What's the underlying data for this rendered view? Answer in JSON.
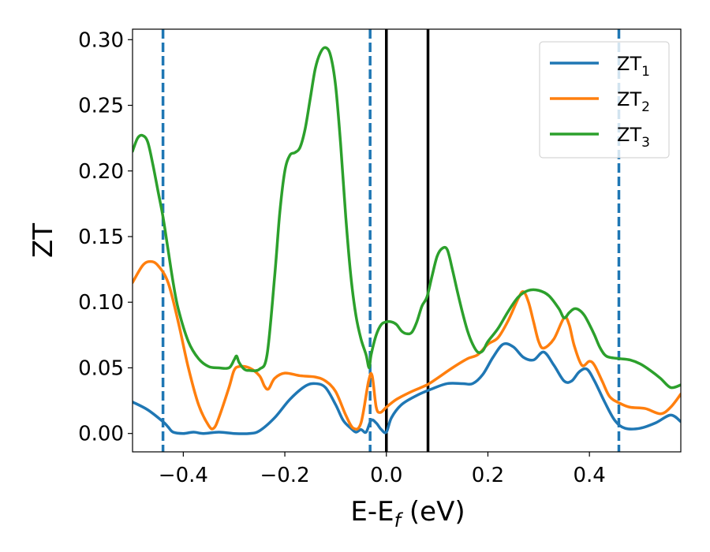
{
  "chart_data": {
    "type": "line",
    "xlabel": "E-E",
    "xlabel_sub": "f",
    "xlabel_unit": " (eV)",
    "ylabel": "ZT",
    "xlim": [
      -0.5,
      0.58
    ],
    "ylim": [
      -0.014,
      0.308
    ],
    "xticks": [
      {
        "value": -0.4,
        "label": "−0.4"
      },
      {
        "value": -0.2,
        "label": "−0.2"
      },
      {
        "value": 0.0,
        "label": "0.0"
      },
      {
        "value": 0.2,
        "label": "0.2"
      },
      {
        "value": 0.4,
        "label": "0.4"
      }
    ],
    "yticks": [
      {
        "value": 0.0,
        "label": "0.00"
      },
      {
        "value": 0.05,
        "label": "0.05"
      },
      {
        "value": 0.1,
        "label": "0.10"
      },
      {
        "value": 0.15,
        "label": "0.15"
      },
      {
        "value": 0.2,
        "label": "0.20"
      },
      {
        "value": 0.25,
        "label": "0.25"
      },
      {
        "value": 0.3,
        "label": "0.30"
      }
    ],
    "grid": false,
    "legend_position": "top-right",
    "vlines": [
      {
        "x": -0.44,
        "style": "dashed",
        "color": "#1f77b4"
      },
      {
        "x": -0.032,
        "style": "dashed",
        "color": "#1f77b4"
      },
      {
        "x": 0.458,
        "style": "dashed",
        "color": "#1f77b4"
      },
      {
        "x": 0.0,
        "style": "solid",
        "color": "#000000"
      },
      {
        "x": 0.082,
        "style": "solid",
        "color": "#000000"
      }
    ],
    "series": [
      {
        "name": "ZT",
        "name_sub": "1",
        "color": "#1f77b4",
        "points": [
          [
            -0.5,
            0.024
          ],
          [
            -0.47,
            0.018
          ],
          [
            -0.44,
            0.009
          ],
          [
            -0.43,
            0.005
          ],
          [
            -0.42,
            0.001
          ],
          [
            -0.4,
            0.0
          ],
          [
            -0.38,
            0.001
          ],
          [
            -0.36,
            0.0
          ],
          [
            -0.33,
            0.001
          ],
          [
            -0.3,
            0.0
          ],
          [
            -0.27,
            0.0
          ],
          [
            -0.25,
            0.002
          ],
          [
            -0.22,
            0.012
          ],
          [
            -0.19,
            0.026
          ],
          [
            -0.16,
            0.036
          ],
          [
            -0.14,
            0.038
          ],
          [
            -0.12,
            0.035
          ],
          [
            -0.1,
            0.022
          ],
          [
            -0.085,
            0.01
          ],
          [
            -0.07,
            0.004
          ],
          [
            -0.06,
            0.001
          ],
          [
            -0.05,
            0.003
          ],
          [
            -0.04,
            0.001
          ],
          [
            -0.03,
            0.01
          ],
          [
            -0.02,
            0.008
          ],
          [
            -0.01,
            0.003
          ],
          [
            0.0,
            0.001
          ],
          [
            0.01,
            0.012
          ],
          [
            0.03,
            0.022
          ],
          [
            0.06,
            0.029
          ],
          [
            0.09,
            0.034
          ],
          [
            0.12,
            0.038
          ],
          [
            0.15,
            0.038
          ],
          [
            0.17,
            0.038
          ],
          [
            0.19,
            0.045
          ],
          [
            0.21,
            0.058
          ],
          [
            0.23,
            0.068
          ],
          [
            0.25,
            0.066
          ],
          [
            0.27,
            0.058
          ],
          [
            0.29,
            0.056
          ],
          [
            0.31,
            0.062
          ],
          [
            0.33,
            0.052
          ],
          [
            0.35,
            0.04
          ],
          [
            0.365,
            0.04
          ],
          [
            0.38,
            0.047
          ],
          [
            0.395,
            0.049
          ],
          [
            0.41,
            0.04
          ],
          [
            0.43,
            0.024
          ],
          [
            0.45,
            0.01
          ],
          [
            0.47,
            0.004
          ],
          [
            0.5,
            0.004
          ],
          [
            0.53,
            0.008
          ],
          [
            0.56,
            0.014
          ],
          [
            0.58,
            0.009
          ]
        ]
      },
      {
        "name": "ZT",
        "name_sub": "2",
        "color": "#ff7f0e",
        "points": [
          [
            -0.5,
            0.115
          ],
          [
            -0.48,
            0.128
          ],
          [
            -0.465,
            0.131
          ],
          [
            -0.45,
            0.128
          ],
          [
            -0.43,
            0.115
          ],
          [
            -0.41,
            0.085
          ],
          [
            -0.39,
            0.05
          ],
          [
            -0.37,
            0.022
          ],
          [
            -0.35,
            0.006
          ],
          [
            -0.34,
            0.004
          ],
          [
            -0.33,
            0.012
          ],
          [
            -0.31,
            0.035
          ],
          [
            -0.3,
            0.048
          ],
          [
            -0.29,
            0.051
          ],
          [
            -0.27,
            0.05
          ],
          [
            -0.25,
            0.044
          ],
          [
            -0.24,
            0.036
          ],
          [
            -0.232,
            0.034
          ],
          [
            -0.22,
            0.042
          ],
          [
            -0.2,
            0.046
          ],
          [
            -0.17,
            0.044
          ],
          [
            -0.14,
            0.043
          ],
          [
            -0.12,
            0.04
          ],
          [
            -0.1,
            0.032
          ],
          [
            -0.08,
            0.014
          ],
          [
            -0.065,
            0.004
          ],
          [
            -0.05,
            0.008
          ],
          [
            -0.035,
            0.04
          ],
          [
            -0.028,
            0.044
          ],
          [
            -0.02,
            0.02
          ],
          [
            -0.012,
            0.016
          ],
          [
            0.0,
            0.02
          ],
          [
            0.02,
            0.026
          ],
          [
            0.05,
            0.032
          ],
          [
            0.08,
            0.037
          ],
          [
            0.1,
            0.042
          ],
          [
            0.13,
            0.05
          ],
          [
            0.16,
            0.057
          ],
          [
            0.18,
            0.06
          ],
          [
            0.2,
            0.068
          ],
          [
            0.22,
            0.073
          ],
          [
            0.24,
            0.086
          ],
          [
            0.26,
            0.103
          ],
          [
            0.27,
            0.108
          ],
          [
            0.28,
            0.1
          ],
          [
            0.29,
            0.085
          ],
          [
            0.3,
            0.07
          ],
          [
            0.31,
            0.065
          ],
          [
            0.33,
            0.072
          ],
          [
            0.35,
            0.088
          ],
          [
            0.36,
            0.083
          ],
          [
            0.37,
            0.067
          ],
          [
            0.385,
            0.052
          ],
          [
            0.4,
            0.055
          ],
          [
            0.41,
            0.052
          ],
          [
            0.425,
            0.04
          ],
          [
            0.44,
            0.028
          ],
          [
            0.46,
            0.023
          ],
          [
            0.48,
            0.02
          ],
          [
            0.51,
            0.019
          ],
          [
            0.54,
            0.015
          ],
          [
            0.56,
            0.02
          ],
          [
            0.58,
            0.03
          ]
        ]
      },
      {
        "name": "ZT",
        "name_sub": "3",
        "color": "#2ca02c",
        "points": [
          [
            -0.5,
            0.215
          ],
          [
            -0.49,
            0.225
          ],
          [
            -0.48,
            0.227
          ],
          [
            -0.47,
            0.222
          ],
          [
            -0.46,
            0.205
          ],
          [
            -0.45,
            0.185
          ],
          [
            -0.44,
            0.165
          ],
          [
            -0.43,
            0.14
          ],
          [
            -0.42,
            0.115
          ],
          [
            -0.41,
            0.095
          ],
          [
            -0.39,
            0.07
          ],
          [
            -0.37,
            0.057
          ],
          [
            -0.35,
            0.051
          ],
          [
            -0.33,
            0.05
          ],
          [
            -0.31,
            0.05
          ],
          [
            -0.3,
            0.056
          ],
          [
            -0.295,
            0.059
          ],
          [
            -0.29,
            0.054
          ],
          [
            -0.28,
            0.049
          ],
          [
            -0.27,
            0.048
          ],
          [
            -0.25,
            0.049
          ],
          [
            -0.235,
            0.06
          ],
          [
            -0.22,
            0.12
          ],
          [
            -0.21,
            0.168
          ],
          [
            -0.2,
            0.2
          ],
          [
            -0.19,
            0.212
          ],
          [
            -0.18,
            0.214
          ],
          [
            -0.17,
            0.218
          ],
          [
            -0.16,
            0.232
          ],
          [
            -0.15,
            0.255
          ],
          [
            -0.14,
            0.278
          ],
          [
            -0.13,
            0.29
          ],
          [
            -0.12,
            0.294
          ],
          [
            -0.11,
            0.288
          ],
          [
            -0.1,
            0.265
          ],
          [
            -0.09,
            0.22
          ],
          [
            -0.08,
            0.165
          ],
          [
            -0.07,
            0.12
          ],
          [
            -0.06,
            0.09
          ],
          [
            -0.05,
            0.072
          ],
          [
            -0.04,
            0.06
          ],
          [
            -0.034,
            0.05
          ],
          [
            -0.03,
            0.06
          ],
          [
            -0.02,
            0.075
          ],
          [
            -0.01,
            0.083
          ],
          [
            0.0,
            0.085
          ],
          [
            0.01,
            0.085
          ],
          [
            0.02,
            0.083
          ],
          [
            0.03,
            0.078
          ],
          [
            0.04,
            0.076
          ],
          [
            0.05,
            0.077
          ],
          [
            0.06,
            0.085
          ],
          [
            0.07,
            0.097
          ],
          [
            0.08,
            0.104
          ],
          [
            0.09,
            0.12
          ],
          [
            0.1,
            0.135
          ],
          [
            0.11,
            0.141
          ],
          [
            0.12,
            0.14
          ],
          [
            0.13,
            0.125
          ],
          [
            0.14,
            0.108
          ],
          [
            0.15,
            0.092
          ],
          [
            0.16,
            0.078
          ],
          [
            0.17,
            0.068
          ],
          [
            0.18,
            0.062
          ],
          [
            0.19,
            0.063
          ],
          [
            0.2,
            0.07
          ],
          [
            0.22,
            0.08
          ],
          [
            0.24,
            0.093
          ],
          [
            0.26,
            0.104
          ],
          [
            0.28,
            0.109
          ],
          [
            0.3,
            0.109
          ],
          [
            0.32,
            0.105
          ],
          [
            0.34,
            0.095
          ],
          [
            0.35,
            0.088
          ],
          [
            0.36,
            0.092
          ],
          [
            0.37,
            0.095
          ],
          [
            0.38,
            0.094
          ],
          [
            0.39,
            0.09
          ],
          [
            0.4,
            0.083
          ],
          [
            0.41,
            0.075
          ],
          [
            0.42,
            0.066
          ],
          [
            0.43,
            0.06
          ],
          [
            0.44,
            0.058
          ],
          [
            0.46,
            0.057
          ],
          [
            0.48,
            0.056
          ],
          [
            0.5,
            0.053
          ],
          [
            0.52,
            0.048
          ],
          [
            0.54,
            0.042
          ],
          [
            0.56,
            0.035
          ],
          [
            0.58,
            0.037
          ]
        ]
      }
    ]
  }
}
